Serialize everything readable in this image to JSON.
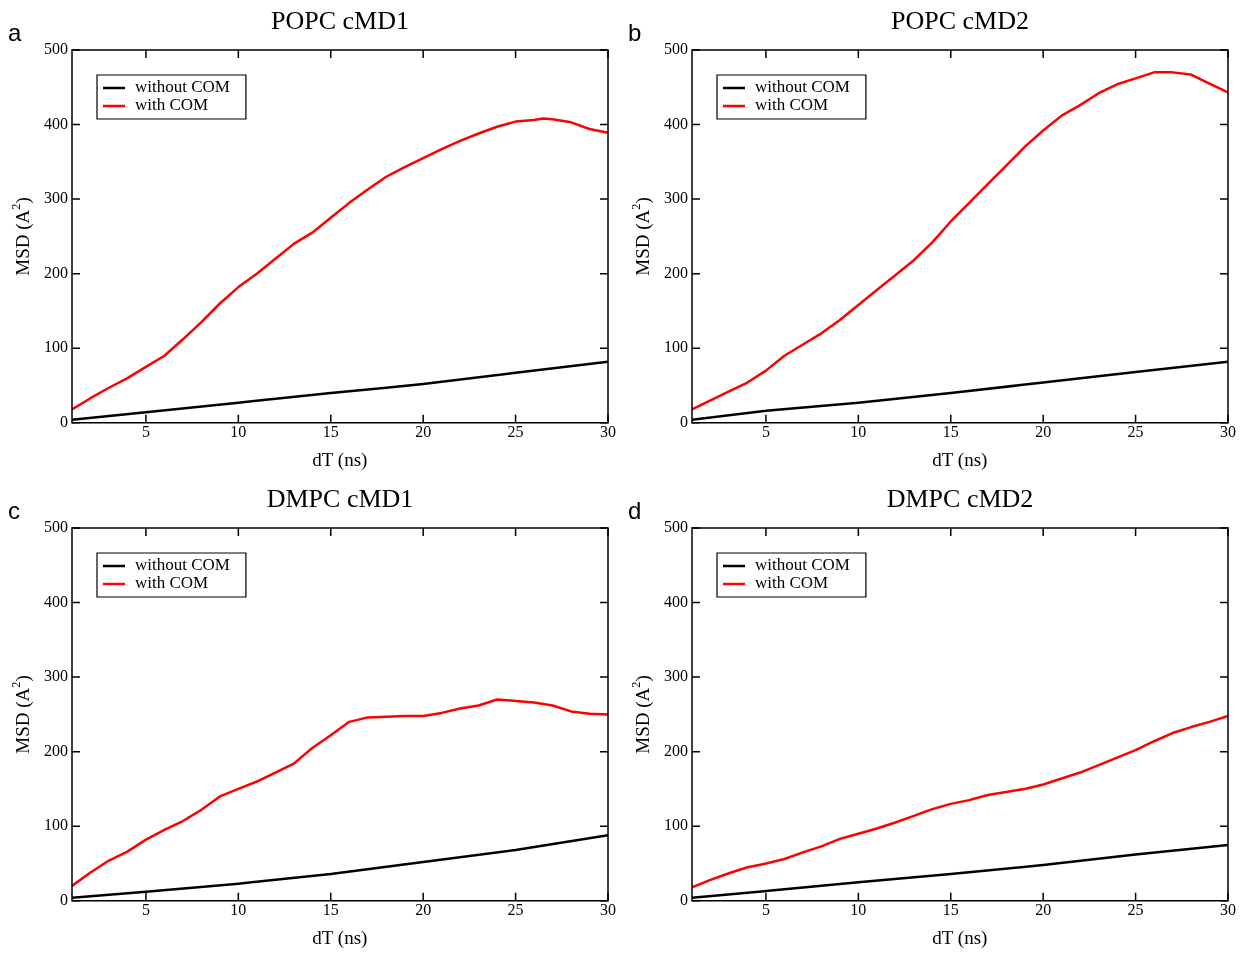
{
  "chart_data": [
    {
      "type": "line",
      "title": "POPC cMD1",
      "xlabel": "dT (ns)",
      "ylabel": "MSD (A$^{2}$)",
      "annotations": [
        "a"
      ],
      "xlim": [
        1,
        30
      ],
      "xticks": [
        5,
        10,
        15,
        20,
        25,
        30
      ],
      "ylim": [
        0,
        500
      ],
      "yticks": [
        0,
        100,
        200,
        300,
        400,
        500
      ],
      "legend": "top left",
      "grid": false,
      "series": [
        {
          "name": "without COM",
          "color": "#000000",
          "x": [
            1,
            5,
            10,
            15,
            18,
            20,
            25,
            30
          ],
          "values": [
            4,
            14,
            27,
            40,
            47,
            52,
            67,
            82
          ]
        },
        {
          "name": "with COM",
          "color": "#ff0000",
          "x": [
            1,
            2,
            3,
            4,
            5,
            6,
            7,
            8,
            9,
            10,
            11,
            12,
            13,
            14,
            15,
            16,
            17,
            18,
            19,
            20,
            21,
            22,
            23,
            24,
            25,
            26,
            26.5,
            27,
            28,
            29,
            30
          ],
          "values": [
            18,
            33,
            47,
            60,
            75,
            90,
            112,
            135,
            160,
            182,
            200,
            220,
            240,
            255,
            275,
            295,
            313,
            330,
            343,
            355,
            367,
            378,
            388,
            397,
            404,
            406,
            408,
            407,
            403,
            394,
            389
          ]
        }
      ]
    },
    {
      "type": "line",
      "title": "POPC cMD2",
      "xlabel": "dT (ns)",
      "ylabel": "MSD (A$^{2}$)",
      "annotations": [
        "b"
      ],
      "xlim": [
        1,
        30
      ],
      "xticks": [
        5,
        10,
        15,
        20,
        25,
        30
      ],
      "ylim": [
        0,
        500
      ],
      "yticks": [
        0,
        100,
        200,
        300,
        400,
        500
      ],
      "legend": "top left",
      "grid": false,
      "series": [
        {
          "name": "without COM",
          "color": "#000000",
          "x": [
            1,
            5,
            10,
            15,
            20,
            25,
            30
          ],
          "values": [
            4,
            16,
            27,
            40,
            54,
            68,
            82
          ]
        },
        {
          "name": "with COM",
          "color": "#ff0000",
          "x": [
            1,
            2,
            3,
            4,
            5,
            6,
            7,
            8,
            9,
            10,
            11,
            12,
            13,
            14,
            15,
            16,
            17,
            18,
            19,
            20,
            21,
            22,
            23,
            24,
            25,
            26,
            27,
            28,
            29,
            30
          ],
          "values": [
            18,
            30,
            42,
            54,
            70,
            90,
            105,
            120,
            138,
            158,
            178,
            198,
            218,
            242,
            270,
            295,
            320,
            345,
            370,
            392,
            412,
            426,
            442,
            454,
            462,
            470,
            470,
            467,
            455,
            443
          ]
        }
      ]
    },
    {
      "type": "line",
      "title": "DMPC cMD1",
      "xlabel": "dT (ns)",
      "ylabel": "MSD (A$^{2}$)",
      "annotations": [
        "c"
      ],
      "xlim": [
        1,
        30
      ],
      "xticks": [
        5,
        10,
        15,
        20,
        25,
        30
      ],
      "ylim": [
        0,
        500
      ],
      "yticks": [
        0,
        100,
        200,
        300,
        400,
        500
      ],
      "legend": "top left",
      "grid": false,
      "series": [
        {
          "name": "without COM",
          "color": "#000000",
          "x": [
            1,
            5,
            10,
            15,
            20,
            25,
            30
          ],
          "values": [
            4,
            12,
            23,
            36,
            52,
            68,
            88
          ]
        },
        {
          "name": "with COM",
          "color": "#ff0000",
          "x": [
            1,
            2,
            3,
            4,
            5,
            6,
            7,
            8,
            9,
            10,
            11,
            12,
            13,
            14,
            15,
            16,
            17,
            18,
            19,
            20,
            21,
            22,
            23,
            24,
            25,
            26,
            27,
            28,
            29,
            30
          ],
          "values": [
            20,
            38,
            54,
            66,
            82,
            95,
            107,
            122,
            140,
            150,
            160,
            172,
            184,
            205,
            222,
            240,
            246,
            247,
            248,
            248,
            252,
            258,
            262,
            270,
            268,
            266,
            262,
            254,
            251,
            250
          ]
        }
      ]
    },
    {
      "type": "line",
      "title": "DMPC cMD2",
      "xlabel": "dT (ns)",
      "ylabel": "MSD (A$^{2}$)",
      "annotations": [
        "d"
      ],
      "xlim": [
        1,
        30
      ],
      "xticks": [
        5,
        10,
        15,
        20,
        25,
        30
      ],
      "ylim": [
        0,
        500
      ],
      "yticks": [
        0,
        100,
        200,
        300,
        400,
        500
      ],
      "legend": "top left",
      "grid": false,
      "series": [
        {
          "name": "without COM",
          "color": "#000000",
          "x": [
            1,
            5,
            10,
            15,
            20,
            25,
            30
          ],
          "values": [
            4,
            13,
            25,
            36,
            48,
            62,
            75
          ]
        },
        {
          "name": "with COM",
          "color": "#ff0000",
          "x": [
            1,
            2,
            3,
            4,
            5,
            6,
            7,
            8,
            9,
            10,
            11,
            12,
            13,
            14,
            15,
            16,
            17,
            18,
            19,
            20,
            21,
            22,
            23,
            24,
            25,
            26,
            27,
            28,
            29,
            30
          ],
          "values": [
            18,
            28,
            37,
            45,
            50,
            56,
            65,
            73,
            83,
            90,
            97,
            105,
            114,
            123,
            130,
            135,
            142,
            146,
            150,
            156,
            164,
            172,
            182,
            192,
            202,
            214,
            225,
            233,
            240,
            248
          ]
        }
      ]
    }
  ]
}
